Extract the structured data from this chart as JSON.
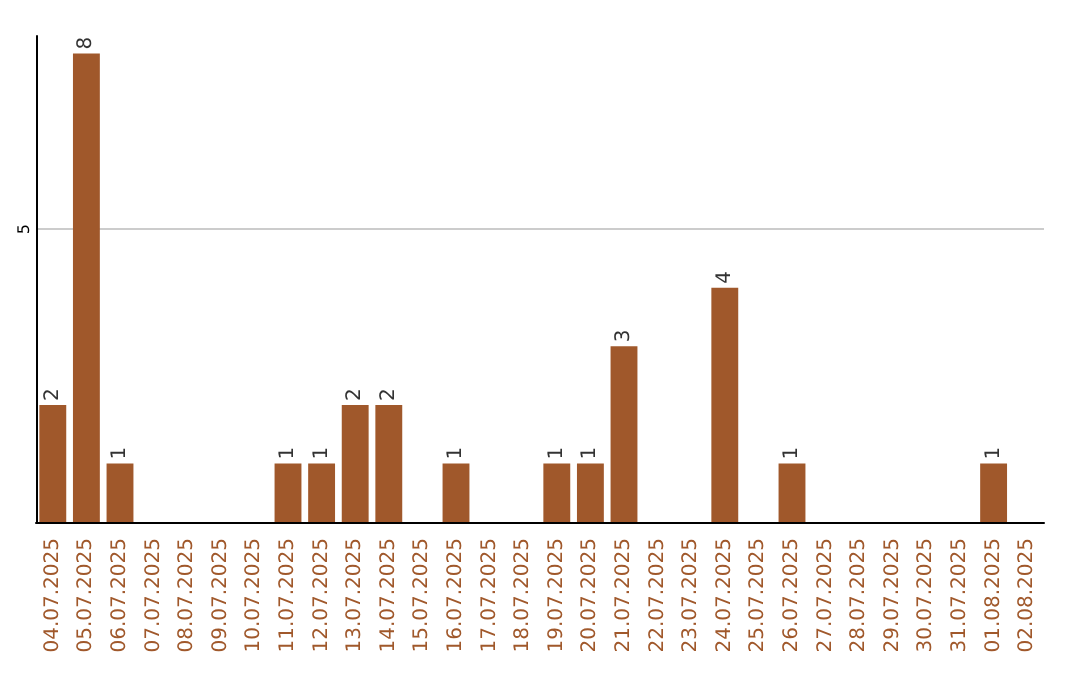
{
  "chart_data": {
    "type": "bar",
    "categories": [
      "04.07.2025",
      "05.07.2025",
      "06.07.2025",
      "07.07.2025",
      "08.07.2025",
      "09.07.2025",
      "10.07.2025",
      "11.07.2025",
      "12.07.2025",
      "13.07.2025",
      "14.07.2025",
      "15.07.2025",
      "16.07.2025",
      "17.07.2025",
      "18.07.2025",
      "19.07.2025",
      "20.07.2025",
      "21.07.2025",
      "22.07.2025",
      "23.07.2025",
      "24.07.2025",
      "25.07.2025",
      "26.07.2025",
      "27.07.2025",
      "28.07.2025",
      "29.07.2025",
      "30.07.2025",
      "31.07.2025",
      "01.08.2025",
      "02.08.2025"
    ],
    "values": [
      2,
      8,
      1,
      0,
      0,
      0,
      0,
      1,
      1,
      2,
      2,
      0,
      1,
      0,
      0,
      1,
      1,
      3,
      0,
      0,
      4,
      0,
      1,
      0,
      0,
      0,
      0,
      0,
      1,
      0
    ],
    "value_labels": [
      "2",
      "8",
      "1",
      null,
      null,
      null,
      null,
      "1",
      "1",
      "2",
      "2",
      null,
      "1",
      null,
      null,
      "1",
      "1",
      "3",
      null,
      null,
      "4",
      null,
      "1",
      null,
      null,
      null,
      null,
      null,
      "1",
      null
    ],
    "color": "#a0582b",
    "ylim": [
      0,
      8.3
    ],
    "yticks": [
      5
    ],
    "grid": "y"
  }
}
